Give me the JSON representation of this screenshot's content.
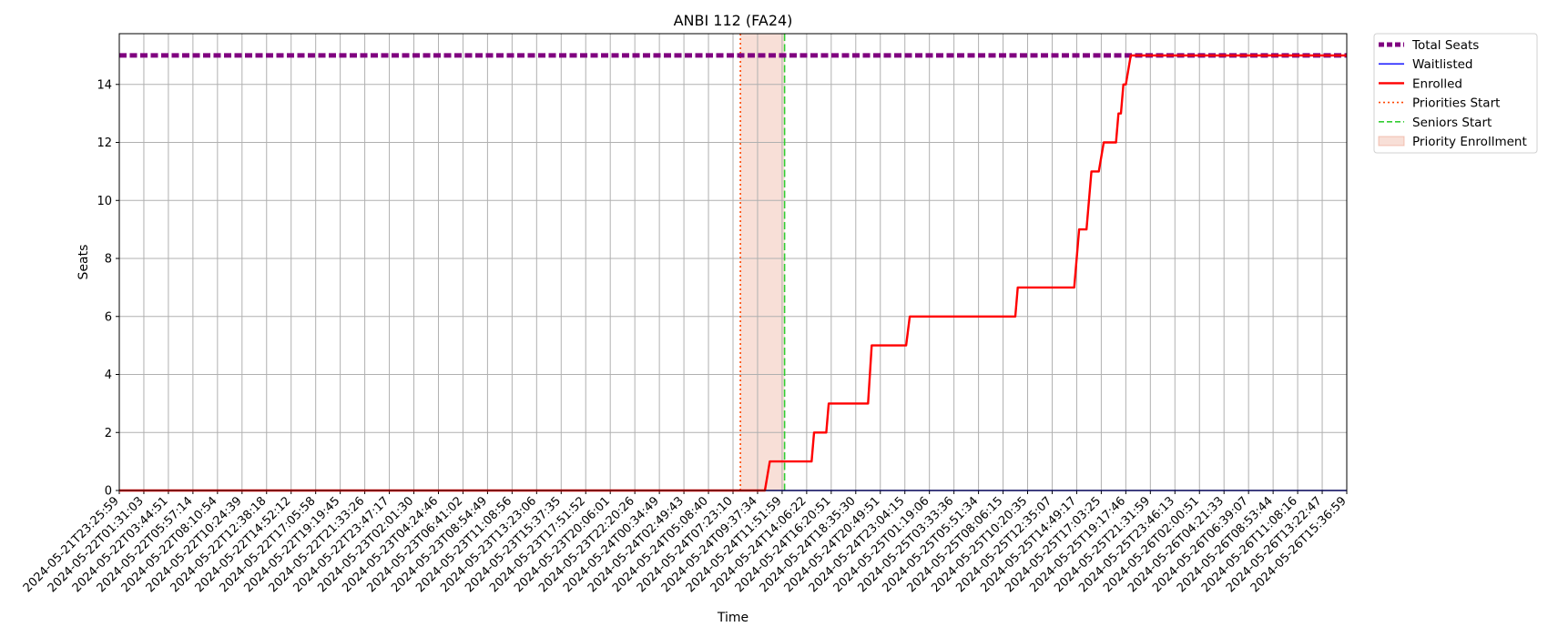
{
  "chart_data": {
    "type": "line",
    "title": "ANBI 112 (FA24)",
    "xlabel": "Time",
    "ylabel": "Seats",
    "ylim": [
      0,
      15.75
    ],
    "y_ticks": [
      0,
      2,
      4,
      6,
      8,
      10,
      12,
      14
    ],
    "grid": true,
    "legend_placement": "outside-top-right",
    "x_ticks": [
      "2024-05-21T23:25:59",
      "2024-05-22T01:31:03",
      "2024-05-22T03:44:51",
      "2024-05-22T05:57:14",
      "2024-05-22T08:10:54",
      "2024-05-22T10:24:39",
      "2024-05-22T12:38:18",
      "2024-05-22T14:52:12",
      "2024-05-22T17:05:58",
      "2024-05-22T19:19:45",
      "2024-05-22T21:33:26",
      "2024-05-22T23:47:17",
      "2024-05-23T02:01:30",
      "2024-05-23T04:24:46",
      "2024-05-23T06:41:02",
      "2024-05-23T08:54:49",
      "2024-05-23T11:08:56",
      "2024-05-23T13:23:06",
      "2024-05-23T15:37:35",
      "2024-05-23T17:51:52",
      "2024-05-23T20:06:01",
      "2024-05-23T22:20:26",
      "2024-05-24T00:34:49",
      "2024-05-24T02:49:43",
      "2024-05-24T05:08:40",
      "2024-05-24T07:23:10",
      "2024-05-24T09:37:34",
      "2024-05-24T11:51:59",
      "2024-05-24T14:06:22",
      "2024-05-24T16:20:51",
      "2024-05-24T18:35:30",
      "2024-05-24T20:49:51",
      "2024-05-24T23:04:15",
      "2024-05-25T01:19:06",
      "2024-05-25T03:33:36",
      "2024-05-25T05:51:34",
      "2024-05-25T08:06:15",
      "2024-05-25T10:20:35",
      "2024-05-25T12:35:07",
      "2024-05-25T14:49:17",
      "2024-05-25T17:03:25",
      "2024-05-25T19:17:46",
      "2024-05-25T21:31:59",
      "2024-05-25T23:46:13",
      "2024-05-26T02:00:51",
      "2024-05-26T04:21:33",
      "2024-05-26T06:39:07",
      "2024-05-26T08:53:44",
      "2024-05-26T11:08:16",
      "2024-05-26T13:22:47",
      "2024-05-26T15:36:59"
    ],
    "series": [
      {
        "name": "Total Seats",
        "color": "#800080",
        "style": "dashed",
        "points": [
          [
            0,
            15
          ],
          [
            50,
            15
          ]
        ]
      },
      {
        "name": "Waitlisted",
        "color": "#0000ff",
        "style": "solid",
        "points": [
          [
            0,
            0
          ],
          [
            50,
            0
          ]
        ]
      },
      {
        "name": "Enrolled",
        "color": "#ff0000",
        "style": "solid",
        "points": [
          [
            0,
            0
          ],
          [
            26.3,
            0
          ],
          [
            26.5,
            1
          ],
          [
            28.2,
            1
          ],
          [
            28.3,
            2
          ],
          [
            28.8,
            2
          ],
          [
            28.9,
            3
          ],
          [
            30.5,
            3
          ],
          [
            30.65,
            5
          ],
          [
            32.05,
            5
          ],
          [
            32.2,
            6
          ],
          [
            36.5,
            6
          ],
          [
            36.6,
            7
          ],
          [
            38.9,
            7
          ],
          [
            39.1,
            9
          ],
          [
            39.4,
            9
          ],
          [
            39.6,
            11
          ],
          [
            39.9,
            11
          ],
          [
            40.1,
            12
          ],
          [
            40.6,
            12
          ],
          [
            40.7,
            13
          ],
          [
            40.8,
            13
          ],
          [
            40.9,
            14
          ],
          [
            41.0,
            14
          ],
          [
            41.2,
            15
          ],
          [
            50,
            15
          ]
        ]
      }
    ],
    "markers": [
      {
        "name": "Priorities Start",
        "color": "#ff4500",
        "style": "dotted",
        "x": 25.3
      },
      {
        "name": "Seniors Start",
        "color": "#32cd32",
        "style": "dashed",
        "x": 27.1
      }
    ],
    "span": {
      "name": "Priority Enrollment",
      "color": "#e9967a",
      "opacity": 0.3,
      "x0": 25.3,
      "x1": 27.1
    }
  }
}
